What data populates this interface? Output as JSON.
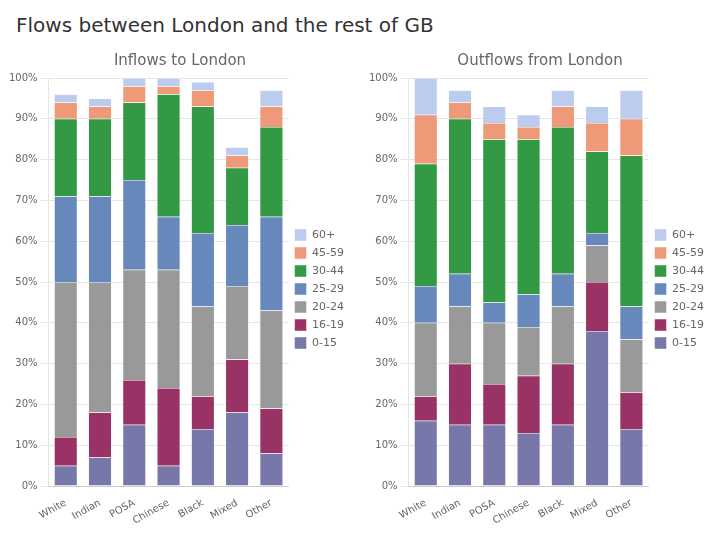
{
  "title": "Flows between London and the rest of GB",
  "chart_data": [
    {
      "type": "bar",
      "title": "Inflows to London",
      "categories": [
        "White",
        "Indian",
        "POSA",
        "Chinese",
        "Black",
        "Mixed",
        "Other"
      ],
      "series": [
        {
          "name": "0-15",
          "color": "#7777aa",
          "values": [
            5,
            7,
            15,
            5,
            14,
            18,
            8
          ]
        },
        {
          "name": "16-19",
          "color": "#993366",
          "values": [
            7,
            11,
            11,
            19,
            8,
            13,
            11
          ]
        },
        {
          "name": "20-24",
          "color": "#999999",
          "values": [
            38,
            32,
            27,
            29,
            22,
            18,
            24
          ]
        },
        {
          "name": "25-29",
          "color": "#6688bb",
          "values": [
            21,
            21,
            22,
            13,
            18,
            15,
            23
          ]
        },
        {
          "name": "30-44",
          "color": "#339944",
          "values": [
            19,
            19,
            19,
            30,
            31,
            14,
            22
          ]
        },
        {
          "name": "45-59",
          "color": "#ee9977",
          "values": [
            4,
            3,
            4,
            2,
            4,
            3,
            5
          ]
        },
        {
          "name": "60+",
          "color": "#bbccee",
          "values": [
            2,
            2,
            2,
            2,
            2,
            2,
            4
          ]
        }
      ],
      "stacked": true,
      "ylim": [
        0,
        100
      ],
      "yticks": [
        {
          "value": 0,
          "label": "0%"
        },
        {
          "value": 10,
          "label": "10%"
        },
        {
          "value": 20,
          "label": "20%"
        },
        {
          "value": 30,
          "label": "30%"
        },
        {
          "value": 40,
          "label": "40%"
        },
        {
          "value": 50,
          "label": "50%"
        },
        {
          "value": 60,
          "label": "60%"
        },
        {
          "value": 70,
          "label": "70%"
        },
        {
          "value": 80,
          "label": "80%"
        },
        {
          "value": 90,
          "label": "90%"
        },
        {
          "value": 100,
          "label": "100%"
        }
      ],
      "grid": true,
      "legend": "right"
    },
    {
      "type": "bar",
      "title": "Outflows from London",
      "categories": [
        "White",
        "Indian",
        "POSA",
        "Chinese",
        "Black",
        "Mixed",
        "Other"
      ],
      "series": [
        {
          "name": "0-15",
          "color": "#7777aa",
          "values": [
            16,
            15,
            15,
            13,
            15,
            38,
            14
          ]
        },
        {
          "name": "16-19",
          "color": "#993366",
          "values": [
            6,
            15,
            10,
            14,
            15,
            12,
            9
          ]
        },
        {
          "name": "20-24",
          "color": "#999999",
          "values": [
            18,
            14,
            15,
            12,
            14,
            9,
            13
          ]
        },
        {
          "name": "25-29",
          "color": "#6688bb",
          "values": [
            9,
            8,
            5,
            8,
            8,
            3,
            8
          ]
        },
        {
          "name": "30-44",
          "color": "#339944",
          "values": [
            30,
            38,
            40,
            38,
            36,
            20,
            37
          ]
        },
        {
          "name": "45-59",
          "color": "#ee9977",
          "values": [
            12,
            4,
            4,
            3,
            5,
            7,
            9
          ]
        },
        {
          "name": "60+",
          "color": "#bbccee",
          "values": [
            9,
            3,
            4,
            3,
            4,
            4,
            7
          ]
        }
      ],
      "stacked": true,
      "ylim": [
        0,
        100
      ],
      "yticks": [
        {
          "value": 0,
          "label": "0%"
        },
        {
          "value": 10,
          "label": "10%"
        },
        {
          "value": 20,
          "label": "20%"
        },
        {
          "value": 30,
          "label": "30%"
        },
        {
          "value": 40,
          "label": "40%"
        },
        {
          "value": 50,
          "label": "50%"
        },
        {
          "value": 60,
          "label": "60%"
        },
        {
          "value": 70,
          "label": "70%"
        },
        {
          "value": 80,
          "label": "80%"
        },
        {
          "value": 90,
          "label": "90%"
        },
        {
          "value": 100,
          "label": "100%"
        }
      ],
      "grid": true,
      "legend": "right"
    }
  ]
}
